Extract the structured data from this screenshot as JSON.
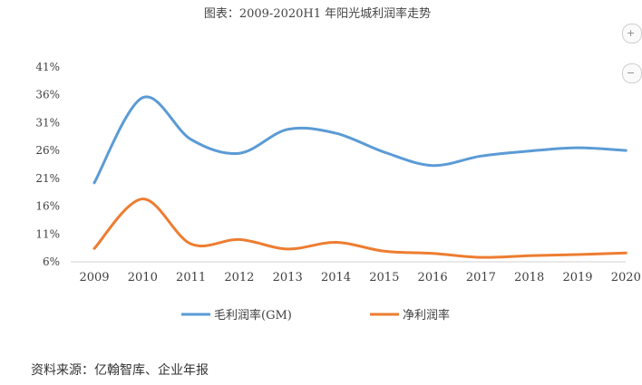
{
  "chart_data": {
    "type": "line",
    "title": "图表：2009-2020H1 年阳光城利润率走势",
    "categories": [
      "2009",
      "2010",
      "2011",
      "2012",
      "2013",
      "2014",
      "2015",
      "2016",
      "2017",
      "2018",
      "2019",
      "2020"
    ],
    "y_ticks": [
      "41%",
      "36%",
      "31%",
      "26%",
      "21%",
      "16%",
      "11%",
      "6%"
    ],
    "ylim": [
      6,
      41
    ],
    "grid": false,
    "legend_position": "bottom",
    "series": [
      {
        "name": "毛利润率(GM)",
        "color": "#5B9BD5",
        "values": [
          20.2,
          35.5,
          28.0,
          25.5,
          29.8,
          29.1,
          25.7,
          23.3,
          25.0,
          25.9,
          26.5,
          26.0
        ]
      },
      {
        "name": "净利润率",
        "color": "#ED7D31",
        "values": [
          8.4,
          17.3,
          9.2,
          10.0,
          8.3,
          9.5,
          7.9,
          7.5,
          6.8,
          7.1,
          7.3,
          7.6
        ]
      }
    ]
  },
  "source_text": "资料来源：亿翰智库、企业年报",
  "edge_controls": {
    "top_icon": "plus-icon",
    "bottom_icon": "minus-icon"
  }
}
